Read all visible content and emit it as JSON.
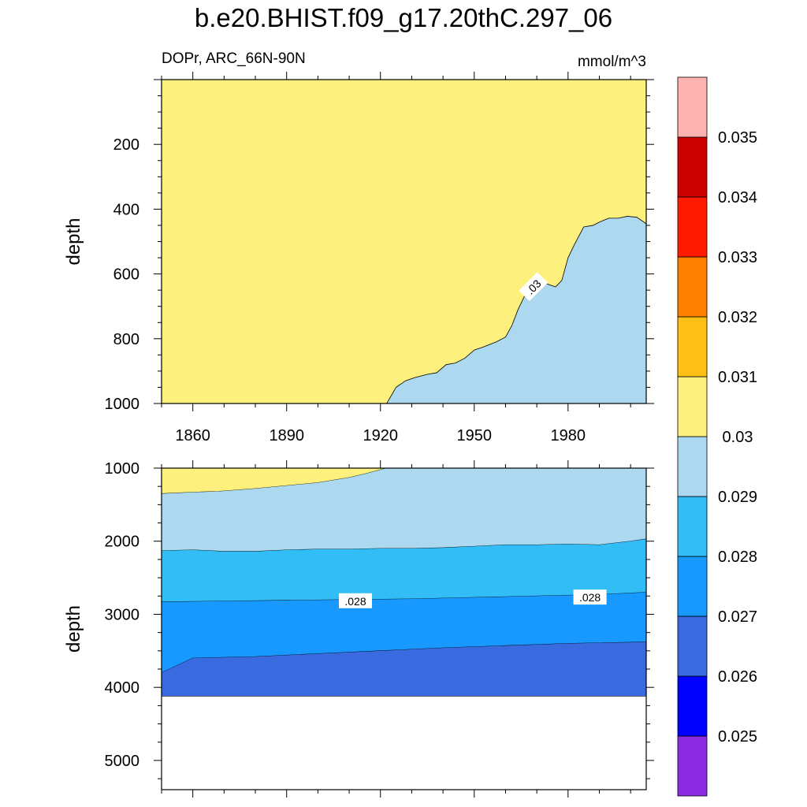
{
  "title": "b.e20.BHIST.f09_g17.20thC.297_06",
  "subtitle_left": "DOPr, ARC_66N-90N",
  "subtitle_right": "mmol/m^3",
  "colors": {
    "lt_0.025": "#8a2be2",
    "0.025-0.026": "#0000ff",
    "0.026-0.027": "#3a6ae0",
    "0.027-0.028": "#1899ff",
    "0.028-0.029": "#33bdf7",
    "0.029-0.03": "#add9f0",
    "0.03-0.031": "#fdf07c",
    "0.031-0.032": "#ffc015",
    "0.032-0.033": "#ff7f00",
    "0.033-0.034": "#ff1a00",
    "0.034-0.035": "#cd0000",
    "gt_0.035": "#ffb2b2"
  },
  "chart_data": [
    {
      "type": "contour",
      "panel": "top",
      "ylabel": "depth",
      "xlim": [
        1850,
        2005
      ],
      "ylim": [
        0,
        1000
      ],
      "y_reversed": true,
      "x_ticks": [
        "1860",
        "1890",
        "1920",
        "1950",
        "1980"
      ],
      "y_ticks": [
        "200",
        "400",
        "600",
        "800",
        "1000"
      ],
      "background_band": "0.03-0.031",
      "regions": [
        {
          "band": "0.029-0.03",
          "boundary_x": [
            1922,
            1925,
            1928,
            1931,
            1935,
            1938,
            1941,
            1944,
            1947,
            1950,
            1953,
            1957,
            1960,
            1962,
            1964,
            1966,
            1968,
            1971,
            1973,
            1976,
            1978,
            1980,
            1982,
            1985,
            1988,
            1990,
            1993,
            1996,
            1999,
            2002,
            2005
          ],
          "boundary_y": [
            1000,
            950,
            930,
            920,
            910,
            905,
            880,
            875,
            860,
            835,
            825,
            810,
            795,
            760,
            710,
            670,
            640,
            625,
            630,
            640,
            620,
            550,
            510,
            455,
            450,
            440,
            428,
            428,
            422,
            425,
            445
          ]
        }
      ],
      "contour_labels": [
        {
          "text": ".03",
          "x": 1969,
          "y": 640
        }
      ]
    },
    {
      "type": "contour",
      "panel": "bottom",
      "ylabel": "depth",
      "xlim": [
        1850,
        2005
      ],
      "ylim": [
        1000,
        5400
      ],
      "y_reversed": true,
      "y_ticks": [
        "1000",
        "2000",
        "3000",
        "4000",
        "5000"
      ],
      "data_bottom_depth": 4120,
      "regions": [
        {
          "band": "0.03-0.031",
          "boundary_x": [
            1850,
            1860,
            1868,
            1880,
            1890,
            1900,
            1910,
            1915,
            1922
          ],
          "boundary_y": [
            1350,
            1330,
            1320,
            1280,
            1240,
            1200,
            1130,
            1080,
            1000
          ]
        },
        {
          "band": "0.029-0.03",
          "boundary_x": [
            1850,
            1860,
            1870,
            1880,
            1890,
            1900,
            1910,
            1920,
            1930,
            1940,
            1950,
            1960,
            1970,
            1980,
            1990,
            2000,
            2005
          ],
          "boundary_y": [
            2130,
            2120,
            2140,
            2140,
            2120,
            2110,
            2110,
            2100,
            2100,
            2090,
            2070,
            2050,
            2050,
            2040,
            2050,
            2000,
            1970
          ]
        },
        {
          "band": "0.028-0.029",
          "boundary_x": [
            1850,
            1870,
            1890,
            1910,
            1930,
            1950,
            1970,
            1990,
            2005
          ],
          "boundary_y": [
            2830,
            2820,
            2810,
            2800,
            2790,
            2770,
            2750,
            2730,
            2700
          ]
        },
        {
          "band": "0.027-0.028",
          "boundary_x": [
            1850,
            1860,
            1880,
            1900,
            1920,
            1940,
            1960,
            1980,
            2005
          ],
          "boundary_y": [
            3800,
            3600,
            3580,
            3540,
            3500,
            3460,
            3430,
            3400,
            3380
          ]
        },
        {
          "band": "0.026-0.027"
        }
      ],
      "contour_labels": [
        {
          "text": ".028",
          "x": 1912,
          "y": 2820
        },
        {
          "text": ".028",
          "x": 1987,
          "y": 2770
        }
      ]
    }
  ],
  "colorbar": {
    "labels": [
      "0.025",
      "0.026",
      "0.027",
      "0.028",
      "0.029",
      "0.03",
      "0.031",
      "0.032",
      "0.033",
      "0.034",
      "0.035"
    ],
    "bands_bottom_to_top": [
      "lt_0.025",
      "0.025-0.026",
      "0.026-0.027",
      "0.027-0.028",
      "0.028-0.029",
      "0.029-0.03",
      "0.03-0.031",
      "0.031-0.032",
      "0.032-0.033",
      "0.033-0.034",
      "0.034-0.035",
      "gt_0.035"
    ]
  }
}
